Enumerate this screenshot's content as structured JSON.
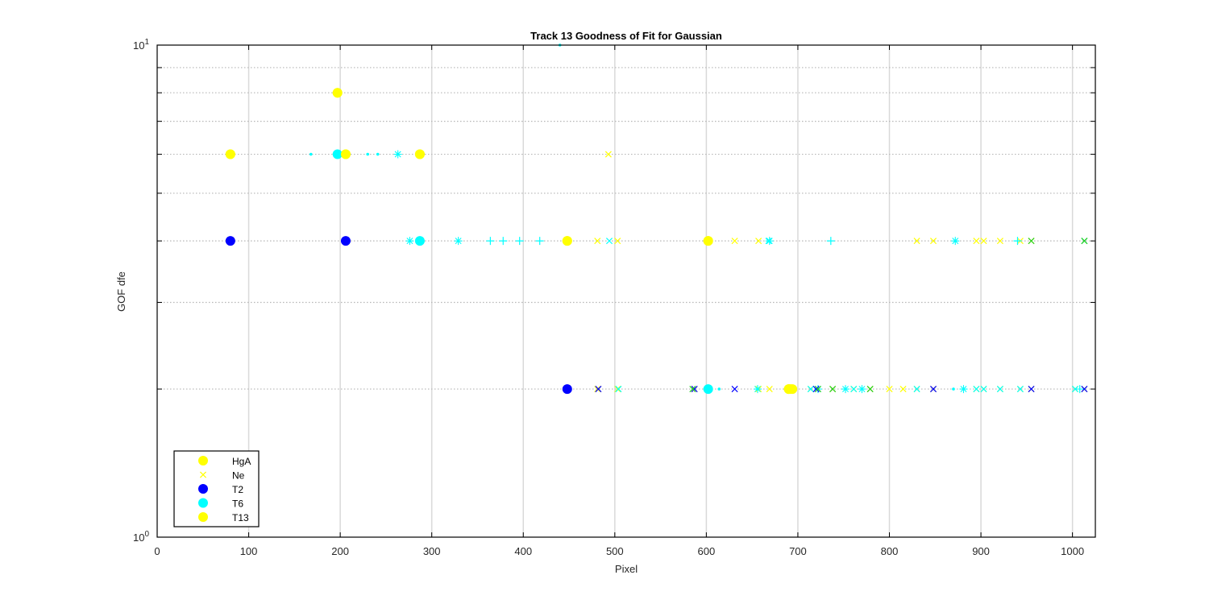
{
  "chart_data": {
    "type": "scatter",
    "title": "Track 13  Goodness of Fit for Gaussian",
    "xlabel": "Pixel",
    "ylabel": "GOF dfe",
    "xlim": [
      0,
      1025
    ],
    "ylim": [
      1,
      10
    ],
    "yscale": "log",
    "grid": true,
    "x_ticks": [
      0,
      100,
      200,
      300,
      400,
      500,
      600,
      700,
      800,
      900,
      1000
    ],
    "x_tick_labels": [
      "0",
      "100",
      "200",
      "300",
      "400",
      "500",
      "600",
      "700",
      "800",
      "900",
      "1000"
    ],
    "y_tick_labels": [
      {
        "value": 1,
        "base": "10",
        "exp": "0"
      },
      {
        "value": 10,
        "base": "10",
        "exp": "1"
      }
    ],
    "y_minor_ticks": [
      2,
      3,
      4,
      5,
      6,
      7,
      8,
      9
    ],
    "legend": {
      "position": "bottom-left",
      "entries": [
        {
          "name": "HgA",
          "marker": "circle",
          "color": "#ffff00"
        },
        {
          "name": "Ne",
          "marker": "x",
          "color": "#ffff00"
        },
        {
          "name": "T2",
          "marker": "circle",
          "color": "#0000ff"
        },
        {
          "name": "T6",
          "marker": "circle",
          "color": "#00ffff"
        },
        {
          "name": "T13",
          "marker": "circle",
          "color": "#ffff00"
        }
      ]
    },
    "series": [
      {
        "name": "HgA",
        "marker": "circle",
        "color": "#ffff00",
        "points": [
          [
            197,
            8
          ],
          [
            80,
            6
          ],
          [
            206,
            6
          ],
          [
            287,
            6
          ],
          [
            448,
            4
          ],
          [
            602,
            4
          ],
          [
            690,
            2
          ],
          [
            692,
            2
          ],
          [
            694,
            2
          ]
        ]
      },
      {
        "name": "Ne",
        "marker": "x",
        "color": "#ffff00",
        "points": [
          [
            493,
            6
          ],
          [
            481,
            4
          ],
          [
            503,
            4
          ],
          [
            631,
            4
          ],
          [
            657,
            4
          ],
          [
            830,
            4
          ],
          [
            848,
            4
          ],
          [
            895,
            4
          ],
          [
            903,
            4
          ],
          [
            921,
            4
          ],
          [
            943,
            4
          ],
          [
            955,
            4
          ],
          [
            1013,
            4
          ],
          [
            481,
            2
          ],
          [
            503,
            2
          ],
          [
            587,
            2
          ],
          [
            657,
            2
          ],
          [
            669,
            2
          ],
          [
            714,
            2
          ],
          [
            738,
            2
          ],
          [
            761,
            2
          ],
          [
            779,
            2
          ],
          [
            800,
            2
          ],
          [
            815,
            2
          ],
          [
            830,
            2
          ],
          [
            848,
            2
          ],
          [
            895,
            2
          ],
          [
            903,
            2
          ],
          [
            921,
            2
          ],
          [
            943,
            2
          ],
          [
            955,
            2
          ],
          [
            1003,
            2
          ],
          [
            1013,
            2
          ]
        ]
      },
      {
        "name": "T2",
        "marker": "circle",
        "color": "#0000ff",
        "points": [
          [
            80,
            4
          ],
          [
            206,
            4
          ],
          [
            448,
            2
          ]
        ]
      },
      {
        "name": "T6",
        "marker": "circle",
        "color": "#00ffff",
        "points": [
          [
            197,
            6
          ],
          [
            287,
            4
          ],
          [
            602,
            2
          ]
        ]
      },
      {
        "name": "T13",
        "marker": "circle",
        "color": "#ffff00",
        "points": [
          [
            197,
            8
          ],
          [
            80,
            6
          ],
          [
            206,
            6
          ],
          [
            287,
            6
          ],
          [
            448,
            4
          ],
          [
            602,
            4
          ],
          [
            690,
            2
          ]
        ]
      },
      {
        "marker": "star",
        "color": "#00ffff",
        "points": [
          [
            263,
            6
          ],
          [
            276,
            4
          ],
          [
            329,
            4
          ],
          [
            669,
            4
          ],
          [
            872,
            4
          ],
          [
            656,
            2
          ],
          [
            722,
            2
          ],
          [
            752,
            2
          ],
          [
            770,
            2
          ],
          [
            881,
            2
          ]
        ]
      },
      {
        "marker": "plus",
        "color": "#00ffff",
        "points": [
          [
            364,
            4
          ],
          [
            378,
            4
          ],
          [
            396,
            4
          ],
          [
            418,
            4
          ],
          [
            736,
            4
          ],
          [
            940,
            4
          ],
          [
            1008,
            2
          ]
        ]
      },
      {
        "marker": "x",
        "color": "#00ffff",
        "points": [
          [
            494,
            4
          ],
          [
            668,
            4
          ],
          [
            1013,
            4
          ],
          [
            504,
            2
          ],
          [
            714,
            2
          ],
          [
            761,
            2
          ],
          [
            830,
            2
          ],
          [
            895,
            2
          ],
          [
            903,
            2
          ],
          [
            921,
            2
          ],
          [
            943,
            2
          ],
          [
            1003,
            2
          ]
        ]
      },
      {
        "marker": "x",
        "color": "#0000ff",
        "points": [
          [
            482,
            2
          ],
          [
            587,
            2
          ],
          [
            631,
            2
          ],
          [
            720,
            2
          ],
          [
            848,
            2
          ],
          [
            955,
            2
          ],
          [
            1013,
            2
          ]
        ]
      },
      {
        "marker": "x",
        "color": "#22cc22",
        "points": [
          [
            955,
            4
          ],
          [
            1013,
            4
          ],
          [
            585,
            2
          ],
          [
            722,
            2
          ],
          [
            738,
            2
          ],
          [
            779,
            2
          ]
        ]
      },
      {
        "marker": "dot",
        "color": "#00ffff",
        "points": [
          [
            168,
            6
          ],
          [
            230,
            6
          ],
          [
            241,
            6
          ],
          [
            440,
            10
          ],
          [
            614,
            2
          ],
          [
            870,
            2
          ]
        ]
      }
    ]
  }
}
